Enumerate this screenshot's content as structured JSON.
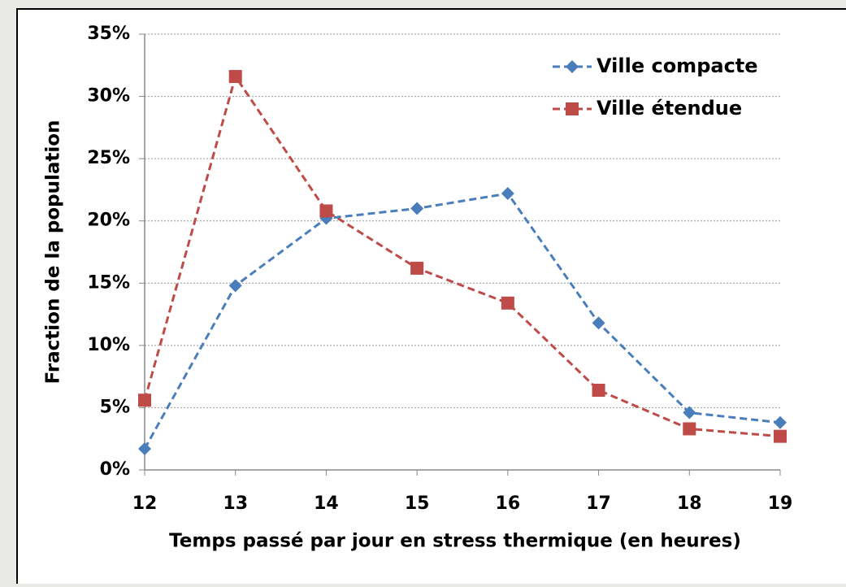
{
  "chart_data": {
    "type": "line",
    "x_label": "Temps passé par jour en stress thermique (en heures)",
    "y_label": "Fraction de la population",
    "x": [
      12,
      13,
      14,
      15,
      16,
      17,
      18,
      19
    ],
    "series": [
      {
        "name": "Ville compacte",
        "color": "#4a7ebb",
        "marker": "diamond",
        "values": [
          1.7,
          14.8,
          20.2,
          21.0,
          22.2,
          11.8,
          4.6,
          3.8
        ]
      },
      {
        "name": "Ville étendue",
        "color": "#be4b48",
        "marker": "square",
        "values": [
          5.6,
          31.6,
          20.8,
          16.2,
          13.4,
          6.4,
          3.3,
          2.7
        ]
      }
    ],
    "xlim": [
      12,
      19
    ],
    "xticks": [
      12,
      13,
      14,
      15,
      16,
      17,
      18,
      19
    ],
    "ylim": [
      0,
      35
    ],
    "yticks": [
      {
        "value": 0,
        "label": "0%"
      },
      {
        "value": 5,
        "label": "5%"
      },
      {
        "value": 10,
        "label": "10%"
      },
      {
        "value": 15,
        "label": "15%"
      },
      {
        "value": 20,
        "label": "20%"
      },
      {
        "value": 25,
        "label": "25%"
      },
      {
        "value": 30,
        "label": "30%"
      },
      {
        "value": 35,
        "label": "35%"
      }
    ],
    "grid": true,
    "legend": "upper right"
  }
}
